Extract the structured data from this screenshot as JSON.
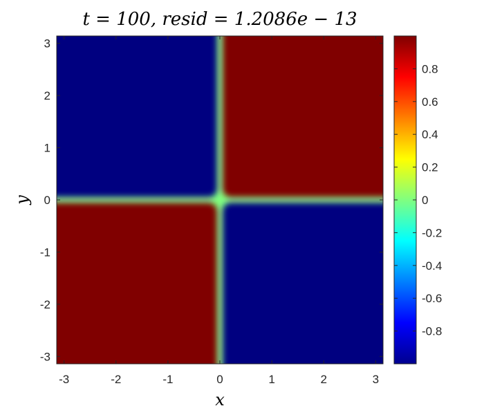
{
  "chart_data": {
    "type": "heatmap",
    "title": "t = 100,  resid = 1.2086e − 13",
    "xlabel": "x",
    "ylabel": "y",
    "xlim": [
      -3.1416,
      3.1416
    ],
    "ylim": [
      -3.1416,
      3.1416
    ],
    "xticks": [
      "-3",
      "-2",
      "-1",
      "0",
      "1",
      "2",
      "3"
    ],
    "yticks": [
      "-3",
      "-2",
      "-1",
      "0",
      "1",
      "2",
      "3"
    ],
    "colormap": "jet",
    "colorbar": {
      "range": [
        -1,
        1
      ],
      "ticks": [
        "-0.8",
        "-0.6",
        "-0.4",
        "-0.2",
        "0",
        "0.2",
        "0.4",
        "0.6",
        "0.8"
      ]
    },
    "quadrants": [
      {
        "x_range": [
          -3.1416,
          0
        ],
        "y_range": [
          0,
          3.1416
        ],
        "value": -1
      },
      {
        "x_range": [
          0,
          3.1416
        ],
        "y_range": [
          0,
          3.1416
        ],
        "value": 1
      },
      {
        "x_range": [
          -3.1416,
          0
        ],
        "y_range": [
          -3.1416,
          0
        ],
        "value": 1
      },
      {
        "x_range": [
          0,
          3.1416
        ],
        "y_range": [
          -3.1416,
          0
        ],
        "value": -1
      }
    ],
    "boundary_value": 0
  }
}
